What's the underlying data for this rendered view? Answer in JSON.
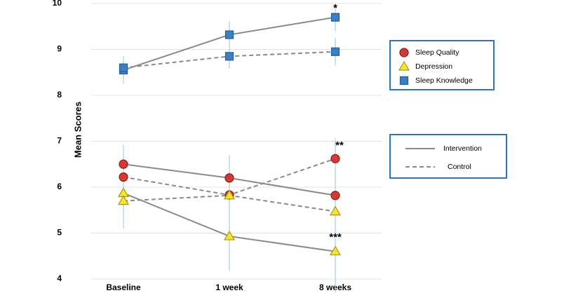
{
  "chart_data": {
    "type": "line",
    "y_label": "Mean Scores",
    "categories": [
      "Baseline",
      "1 week",
      "8 weeks"
    ],
    "ylim": [
      4,
      10
    ],
    "yticks": [
      4,
      5,
      6,
      7,
      8,
      9,
      10
    ],
    "grid": true,
    "line_styles": [
      "Intervention",
      "Control"
    ],
    "groups": [
      {
        "name": "Sleep Quality",
        "color": "#d33a36",
        "marker": "circle",
        "series": [
          {
            "values": [
              6.5,
              6.2,
              5.82
            ],
            "errors": [
              0.42,
              0.5,
              0.5
            ]
          },
          {
            "values": [
              6.22,
              5.83,
              6.62
            ],
            "errors": [
              0.4,
              0.5,
              0.45
            ]
          }
        ]
      },
      {
        "name": "Depression",
        "color": "#f4e531",
        "marker": "triangle",
        "series": [
          {
            "values": [
              5.87,
              4.93,
              4.6
            ],
            "errors": [
              0.75,
              0.75,
              0.9
            ]
          },
          {
            "values": [
              5.7,
              5.82,
              5.47
            ],
            "errors": [
              0.6,
              0.6,
              0.55
            ]
          }
        ]
      },
      {
        "name": "Sleep Knowledge",
        "color": "#3a80c3",
        "marker": "square",
        "series": [
          {
            "values": [
              8.55,
              9.32,
              9.7
            ],
            "errors": [
              0.3,
              0.3,
              0.3
            ]
          },
          {
            "values": [
              8.6,
              8.85,
              8.95
            ],
            "errors": [
              0.25,
              0.27,
              0.3
            ]
          }
        ]
      }
    ],
    "annotations": [
      "*",
      "**",
      "***"
    ]
  }
}
